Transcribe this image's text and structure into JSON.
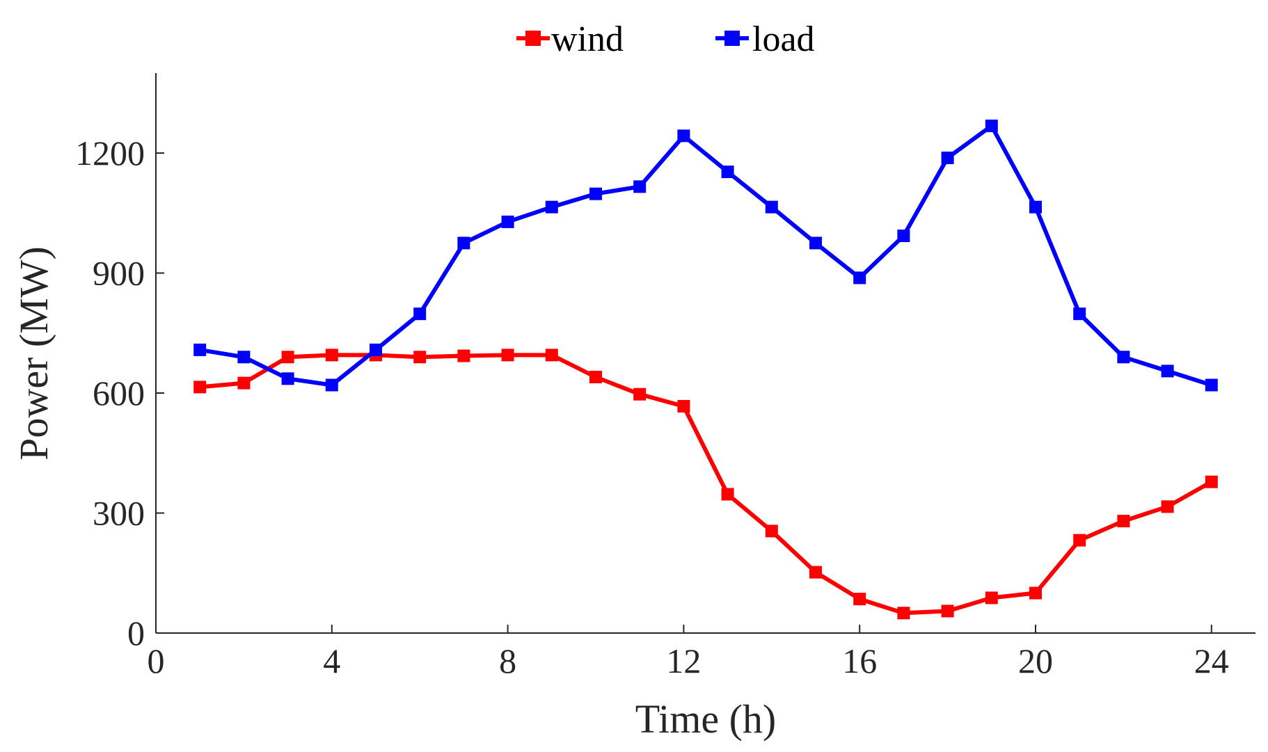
{
  "chart_data": {
    "type": "line",
    "title": "",
    "xlabel": "Time (h)",
    "ylabel": "Power (MW)",
    "xlim": [
      0,
      25
    ],
    "ylim": [
      0,
      1400
    ],
    "xticks": [
      0,
      4,
      8,
      12,
      16,
      20,
      24
    ],
    "yticks": [
      0,
      300,
      600,
      900,
      1200
    ],
    "xtick_labels": [
      "0",
      "4",
      "8",
      "12",
      "16",
      "20",
      "24"
    ],
    "ytick_labels": [
      "0",
      "300",
      "600",
      "900",
      "1200"
    ],
    "grid": false,
    "legend_position": "top-center, outside",
    "x": [
      1,
      2,
      3,
      4,
      5,
      6,
      7,
      8,
      9,
      10,
      11,
      12,
      13,
      14,
      15,
      16,
      17,
      18,
      19,
      20,
      21,
      22,
      23,
      24
    ],
    "series": [
      {
        "name": "wind",
        "color": "#ff0000",
        "marker": "square",
        "values": [
          615,
          625,
          690,
          695,
          695,
          690,
          693,
          695,
          695,
          640,
          597,
          567,
          347,
          255,
          152,
          85,
          50,
          55,
          88,
          100,
          232,
          280,
          316,
          378
        ]
      },
      {
        "name": "load",
        "color": "#0000ff",
        "marker": "square",
        "values": [
          708,
          690,
          636,
          620,
          708,
          798,
          975,
          1028,
          1065,
          1098,
          1116,
          1243,
          1153,
          1065,
          975,
          888,
          993,
          1188,
          1268,
          1065,
          798,
          690,
          655,
          620
        ]
      }
    ]
  }
}
